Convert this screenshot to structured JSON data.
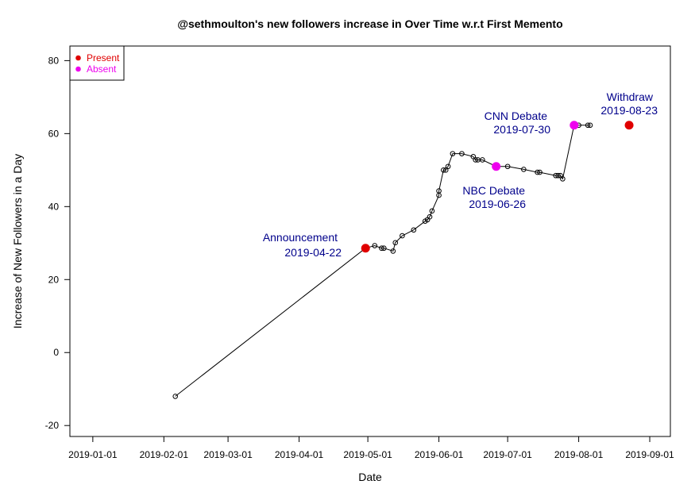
{
  "chart_data": {
    "type": "scatter",
    "title": "@sethmoulton's new followers increase in Over Time w.r.t First Memento",
    "xlabel": "Date",
    "ylabel": "Increase of New Followers in a Day",
    "xlim": [
      "2018-12-22",
      "2019-09-10"
    ],
    "ylim": [
      -23,
      84
    ],
    "x_ticks": [
      "2019-01-01",
      "2019-02-01",
      "2019-03-01",
      "2019-04-01",
      "2019-05-01",
      "2019-06-01",
      "2019-07-01",
      "2019-08-01",
      "2019-09-01"
    ],
    "y_ticks": [
      -20,
      0,
      20,
      40,
      60,
      80
    ],
    "grid": false,
    "legend_position": "top-left",
    "legend": [
      {
        "label": "Present",
        "color": "#e00000"
      },
      {
        "label": "Absent",
        "color": "#ee00ee"
      }
    ],
    "series": [
      {
        "points": [
          [
            "2019-02-06",
            -12
          ],
          [
            "2019-04-30",
            28.6
          ],
          [
            "2019-05-04",
            29.3
          ],
          [
            "2019-05-07",
            28.6
          ],
          [
            "2019-05-08",
            28.6
          ],
          [
            "2019-05-12",
            27.8
          ],
          [
            "2019-05-13",
            30.1
          ],
          [
            "2019-05-16",
            32.0
          ],
          [
            "2019-05-21",
            33.6
          ],
          [
            "2019-05-26",
            36.0
          ],
          [
            "2019-05-27",
            36.4
          ],
          [
            "2019-05-28",
            37.2
          ],
          [
            "2019-05-29",
            38.8
          ],
          [
            "2019-06-01",
            43.1
          ],
          [
            "2019-06-01",
            44.3
          ],
          [
            "2019-06-03",
            50.0
          ],
          [
            "2019-06-04",
            50.0
          ],
          [
            "2019-06-05",
            51.0
          ],
          [
            "2019-06-07",
            54.5
          ],
          [
            "2019-06-11",
            54.5
          ],
          [
            "2019-06-16",
            53.7
          ],
          [
            "2019-06-17",
            52.8
          ],
          [
            "2019-06-18",
            52.8
          ],
          [
            "2019-06-20",
            52.8
          ],
          [
            "2019-06-26",
            51.0
          ],
          [
            "2019-07-01",
            51.0
          ],
          [
            "2019-07-08",
            50.2
          ],
          [
            "2019-07-14",
            49.4
          ],
          [
            "2019-07-15",
            49.4
          ],
          [
            "2019-07-22",
            48.5
          ],
          [
            "2019-07-23",
            48.5
          ],
          [
            "2019-07-24",
            48.5
          ],
          [
            "2019-07-25",
            47.6
          ],
          [
            "2019-07-30",
            62.3
          ],
          [
            "2019-08-01",
            62.3
          ],
          [
            "2019-08-05",
            62.3
          ],
          [
            "2019-08-06",
            62.3
          ]
        ]
      }
    ],
    "events": [
      {
        "date": "2019-04-30",
        "y": 28.6,
        "status": "Present",
        "label": "Announcement",
        "date_label": "2019-04-22"
      },
      {
        "date": "2019-06-26",
        "y": 51.0,
        "status": "Absent",
        "label": "NBC Debate",
        "date_label": "2019-06-26"
      },
      {
        "date": "2019-07-30",
        "y": 62.3,
        "status": "Absent",
        "label": "CNN Debate",
        "date_label": "2019-07-30"
      },
      {
        "date": "2019-08-23",
        "y": 62.3,
        "status": "Present",
        "label": "Withdraw",
        "date_label": "2019-08-23"
      }
    ],
    "colors": {
      "line": "#000000",
      "annotation": "#00008b"
    }
  }
}
